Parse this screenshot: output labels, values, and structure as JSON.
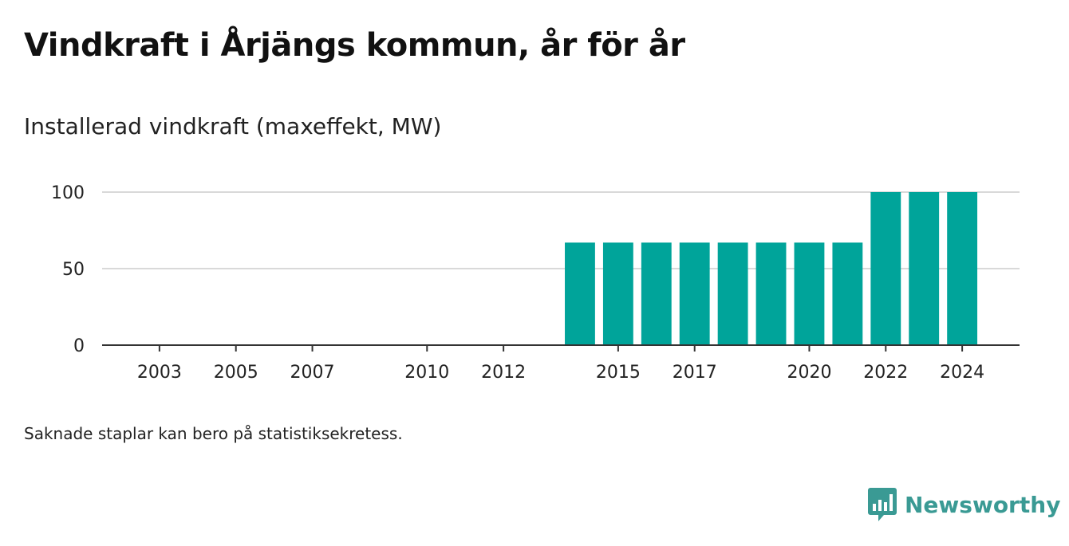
{
  "title": "Vindkraft i Årjängs kommun, år för år",
  "subtitle": "Installerad vindkraft (maxeffekt, MW)",
  "note": "Saknade staplar kan bero på statistiksekretess.",
  "brand": {
    "name": "Newsworthy",
    "icon": "newsworthy-logo-icon",
    "color": "#3a9a94"
  },
  "colors": {
    "bar": "#00a49a",
    "grid": "#d9d9d9",
    "axis": "#333333",
    "text": "#222222"
  },
  "chart_data": {
    "type": "bar",
    "title": "Vindkraft i Årjängs kommun, år för år",
    "subtitle": "Installerad vindkraft (maxeffekt, MW)",
    "xlabel": "",
    "ylabel": "",
    "xlim": [
      2001.5,
      2025.5
    ],
    "ylim": [
      0,
      100
    ],
    "yticks": [
      0,
      50,
      100
    ],
    "xticks": [
      2003,
      2005,
      2007,
      2010,
      2012,
      2015,
      2017,
      2020,
      2022,
      2024
    ],
    "grid": true,
    "categories": [
      2014,
      2015,
      2016,
      2017,
      2018,
      2019,
      2020,
      2021,
      2022,
      2023,
      2024
    ],
    "values": [
      67,
      67,
      67,
      67,
      67,
      67,
      67,
      67,
      100,
      100,
      100
    ]
  }
}
